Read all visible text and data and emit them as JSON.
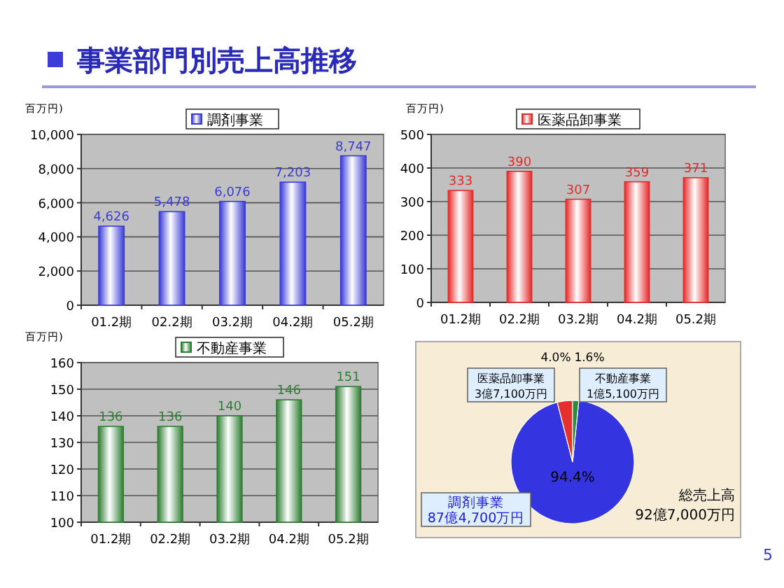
{
  "chart_data": [
    {
      "type": "bar",
      "title": "事業部門別売上高推移",
      "ylabel": "百万円)",
      "categories": [
        "01.2期",
        "02.2期",
        "03.2期",
        "04.2期",
        "05.2期"
      ],
      "series": [
        {
          "name": "調剤事業",
          "color": "#3a3ad8",
          "values": [
            4626,
            5478,
            6076,
            7203,
            8747
          ],
          "value_labels": [
            "4,626",
            "5,478",
            "6,076",
            "7,203",
            "8,747"
          ]
        }
      ],
      "ylim": [
        0,
        10000
      ],
      "yticks": [
        {
          "value": 0,
          "label": "0"
        },
        {
          "value": 2000,
          "label": "2,000"
        },
        {
          "value": 4000,
          "label": "4,000"
        },
        {
          "value": 6000,
          "label": "6,000"
        },
        {
          "value": 8000,
          "label": "8,000"
        },
        {
          "value": 10000,
          "label": "10,000"
        }
      ],
      "grid": "y",
      "legend": "top",
      "data_labels": true
    },
    {
      "type": "bar",
      "ylabel": "百万円)",
      "categories": [
        "01.2期",
        "02.2期",
        "03.2期",
        "04.2期",
        "05.2期"
      ],
      "series": [
        {
          "name": "医薬品卸事業",
          "color": "#e52a2a",
          "values": [
            333,
            390,
            307,
            359,
            371
          ]
        }
      ],
      "ylim": [
        0,
        500
      ],
      "yticks": [
        0,
        100,
        200,
        300,
        400,
        500
      ],
      "grid": "y",
      "legend": "top",
      "data_labels": true
    },
    {
      "type": "bar",
      "ylabel": "百万円)",
      "categories": [
        "01.2期",
        "02.2期",
        "03.2期",
        "04.2期",
        "05.2期"
      ],
      "series": [
        {
          "name": "不動産事業",
          "color": "#2e7d32",
          "values": [
            136,
            136,
            140,
            146,
            151
          ]
        }
      ],
      "ylim": [
        100,
        160
      ],
      "yticks": [
        100,
        110,
        120,
        130,
        140,
        150,
        160
      ],
      "grid": "y",
      "legend": "top",
      "data_labels": true
    },
    {
      "type": "pie",
      "categories": [
        "調剤事業",
        "医薬品卸事業",
        "不動産事業"
      ],
      "values": [
        94.4,
        4.0,
        1.6
      ],
      "colors": [
        "#3434e0",
        "#e53030",
        "#2e8b3a"
      ],
      "value_labels": [
        "94.4%",
        "4.0%",
        "1.6%"
      ],
      "annotations": [
        "87億4,700万円",
        "3億7,100万円",
        "1億5,100万円",
        "総売上高",
        "92億7,000万円",
        "5"
      ]
    }
  ]
}
